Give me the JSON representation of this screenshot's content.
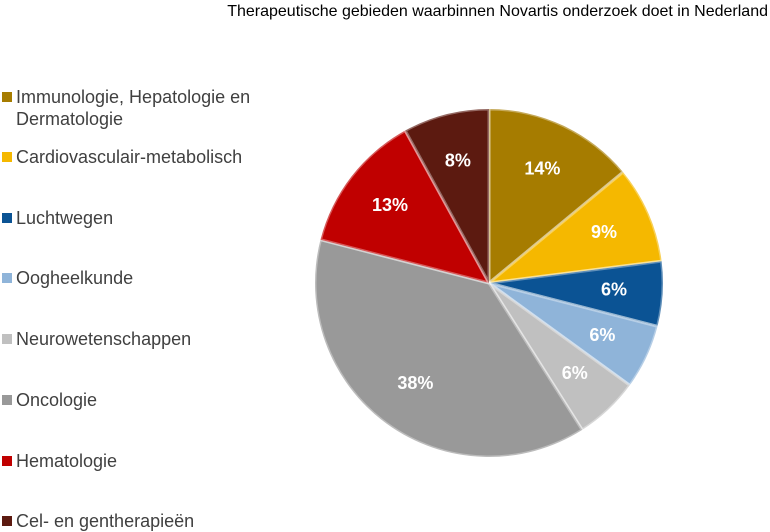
{
  "chart_data": {
    "type": "pie",
    "title": "Therapeutische gebieden waarbinnen Novartis onderzoek doet in Nederland",
    "categories": [
      "Immunologie, Hepatologie en Dermatologie",
      "Cardiovasculair-metabolisch",
      "Luchtwegen",
      "Oogheelkunde",
      "Neurowetenschappen",
      "Oncologie",
      "Hematologie",
      "Cel- en gentherapieën"
    ],
    "values": [
      14,
      9,
      6,
      6,
      6,
      38,
      13,
      8
    ],
    "value_labels": [
      "14%",
      "9%",
      "6%",
      "6%",
      "6%",
      "38%",
      "13%",
      "8%"
    ],
    "colors": [
      "#a67c00",
      "#f5b800",
      "#0b5394",
      "#8fb4d9",
      "#c0c0c0",
      "#999999",
      "#c00000",
      "#5c1a10"
    ],
    "legend": "left"
  }
}
